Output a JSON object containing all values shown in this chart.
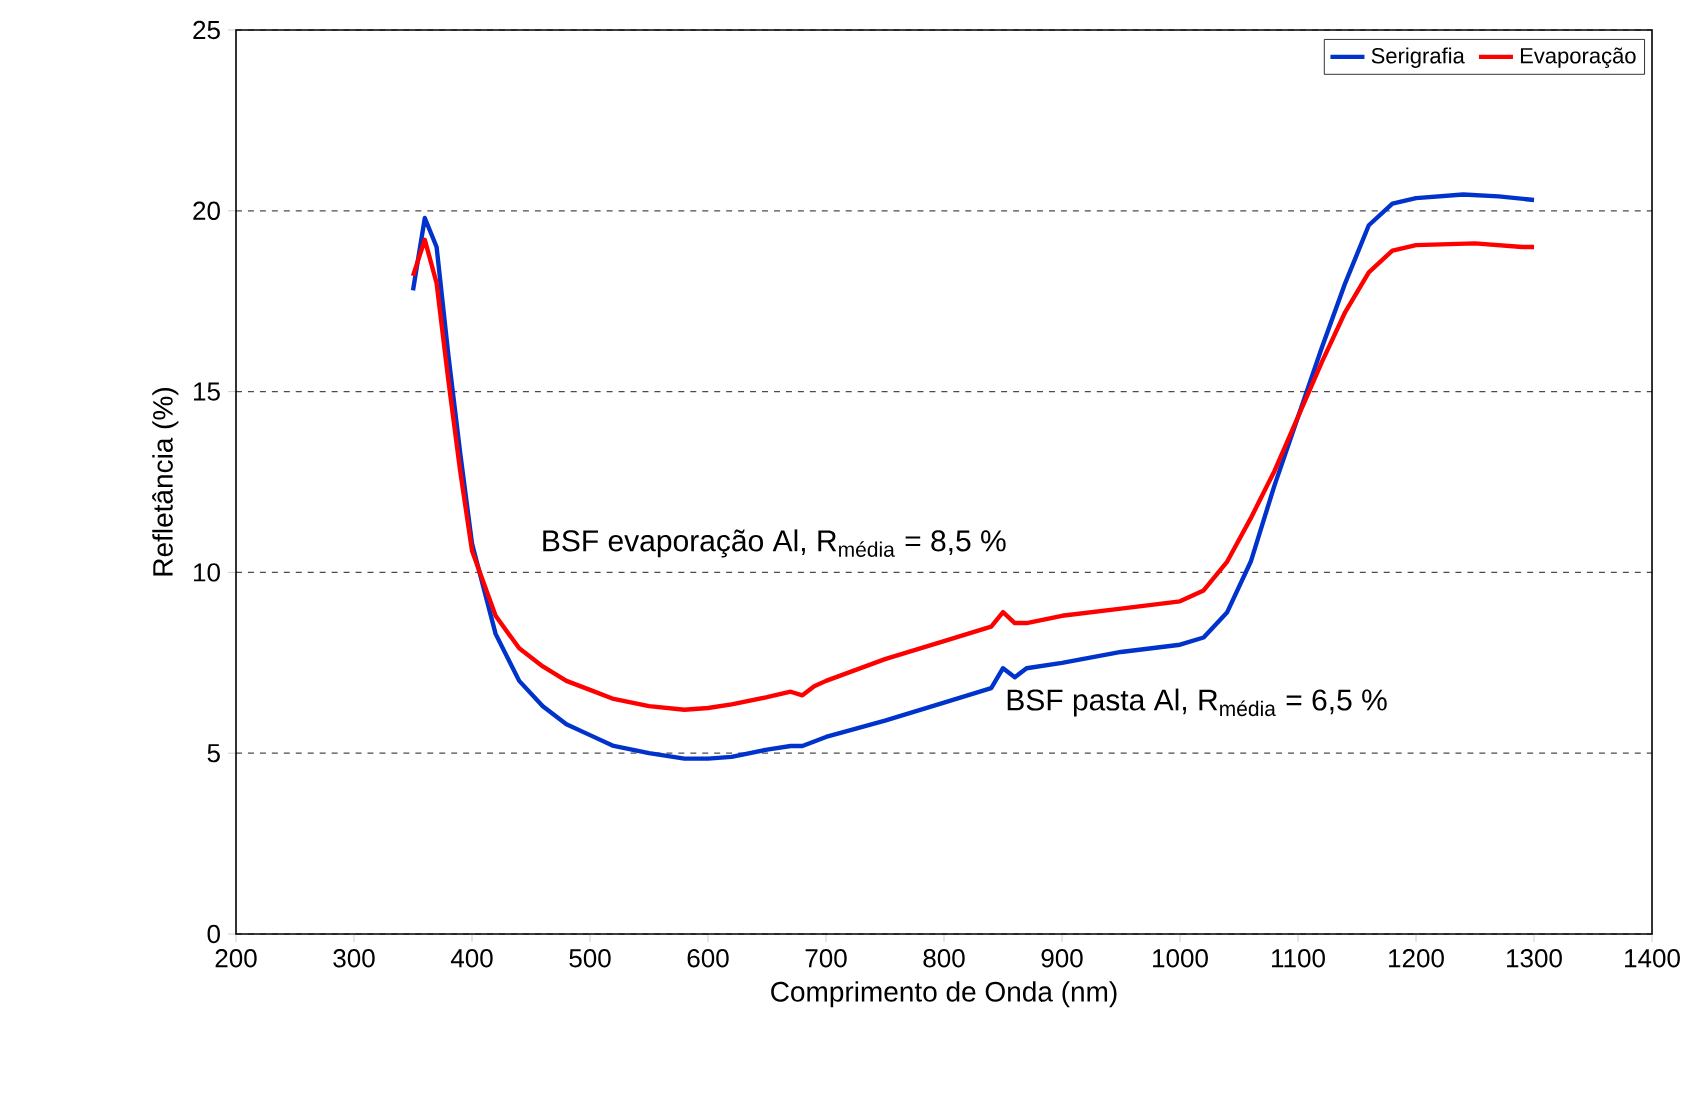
{
  "chart_data": {
    "type": "line",
    "xlabel": "Comprimento de Onda (nm)",
    "ylabel": "Refletância (%)",
    "xlim": [
      200,
      1400
    ],
    "xticks": [
      200,
      300,
      400,
      500,
      600,
      700,
      800,
      900,
      1000,
      1100,
      1200,
      1300,
      1400
    ],
    "ylim": [
      0,
      25
    ],
    "yticks": [
      0,
      5,
      10,
      15,
      20,
      25
    ],
    "grid": "y",
    "legend": "top right",
    "marker": "none",
    "line_style": "solid",
    "annotations": [
      "BSF evaporação Al, R$_{média}$ = 8,5 %",
      "BSF pasta Al, R$_{média}$ = 6,5 %"
    ],
    "series": [
      {
        "name": "Serigrafia",
        "color": "#0033cc",
        "x": [
          350,
          360,
          370,
          380,
          390,
          400,
          420,
          440,
          460,
          480,
          500,
          520,
          550,
          580,
          600,
          620,
          650,
          670,
          680,
          700,
          750,
          800,
          840,
          850,
          860,
          870,
          900,
          950,
          1000,
          1020,
          1040,
          1060,
          1080,
          1100,
          1120,
          1140,
          1160,
          1180,
          1200,
          1240,
          1270,
          1300
        ],
        "values": [
          17.8,
          19.8,
          19.0,
          16.0,
          13.3,
          10.8,
          8.3,
          7.0,
          6.3,
          5.8,
          5.5,
          5.2,
          5.0,
          4.85,
          4.85,
          4.9,
          5.1,
          5.2,
          5.2,
          5.45,
          5.9,
          6.4,
          6.8,
          7.35,
          7.1,
          7.35,
          7.5,
          7.8,
          8.0,
          8.2,
          8.9,
          10.3,
          12.4,
          14.3,
          16.2,
          18.0,
          19.6,
          20.2,
          20.35,
          20.45,
          20.4,
          20.3
        ]
      },
      {
        "name": "Evaporação",
        "color": "#ff0000",
        "x": [
          350,
          360,
          370,
          380,
          390,
          400,
          420,
          440,
          460,
          480,
          500,
          520,
          550,
          580,
          600,
          620,
          650,
          670,
          680,
          690,
          700,
          750,
          800,
          840,
          850,
          860,
          870,
          900,
          950,
          1000,
          1020,
          1040,
          1060,
          1080,
          1100,
          1120,
          1140,
          1160,
          1180,
          1200,
          1250,
          1290,
          1300
        ],
        "values": [
          18.2,
          19.2,
          18.0,
          15.3,
          12.8,
          10.6,
          8.8,
          7.9,
          7.4,
          7.0,
          6.75,
          6.5,
          6.3,
          6.2,
          6.25,
          6.35,
          6.55,
          6.7,
          6.6,
          6.85,
          7.0,
          7.6,
          8.1,
          8.5,
          8.9,
          8.6,
          8.6,
          8.8,
          9.0,
          9.2,
          9.5,
          10.3,
          11.5,
          12.8,
          14.3,
          15.8,
          17.2,
          18.3,
          18.9,
          19.05,
          19.1,
          19.0,
          19.0
        ]
      }
    ]
  }
}
